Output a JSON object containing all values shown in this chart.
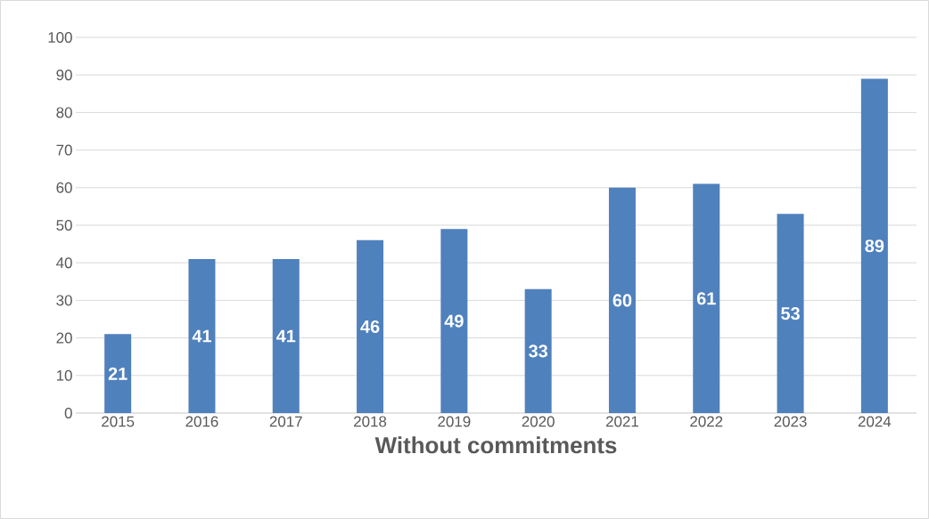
{
  "chart_data": {
    "type": "bar",
    "xlabel": "Without commitments",
    "categories": [
      "2015",
      "2016",
      "2017",
      "2018",
      "2019",
      "2020",
      "2021",
      "2022",
      "2023",
      "2024"
    ],
    "values": [
      21,
      41,
      41,
      46,
      49,
      33,
      60,
      61,
      53,
      89
    ],
    "color": "#4f81bd",
    "ylim": [
      0,
      100
    ],
    "yticks": [
      0,
      10,
      20,
      30,
      40,
      50,
      60,
      70,
      80,
      90,
      100
    ],
    "grid": "y",
    "data_labels": true
  }
}
